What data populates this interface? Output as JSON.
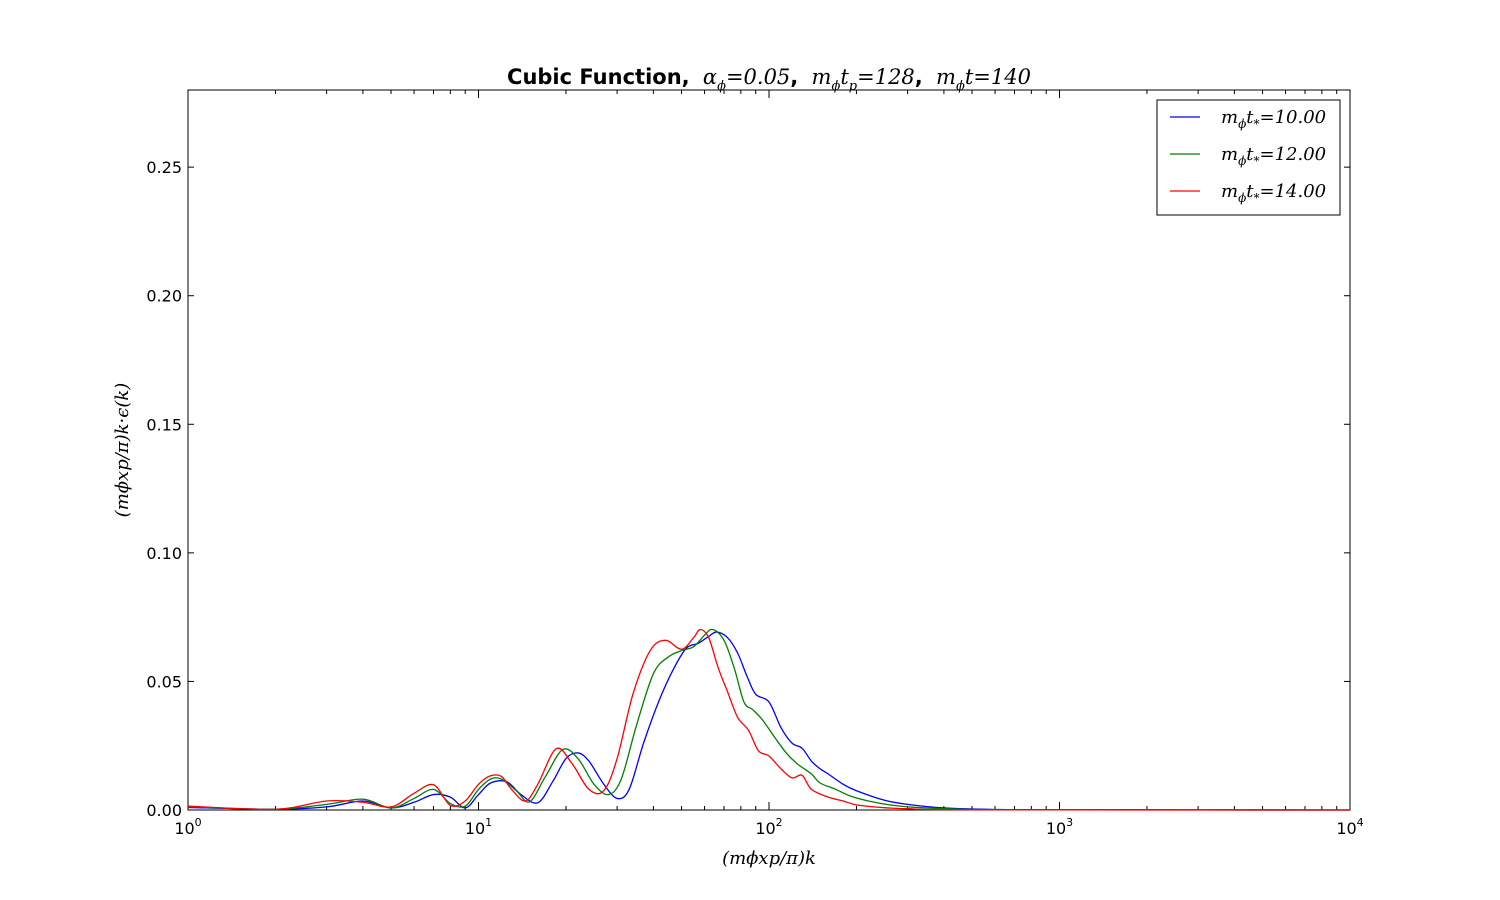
{
  "chart_data": {
    "type": "line",
    "title": {
      "bold": "Cubic Function,",
      "math1": "α",
      "sub1": "ϕ",
      "eq1": "=0.05",
      "sep1": ",",
      "math2": "m",
      "sub2": "ϕ",
      "math2b": "t",
      "sub2b": "p",
      "eq2": "=128",
      "sep2": ",",
      "math3": "m",
      "sub3": "ϕ",
      "math3b": "t",
      "eq3": "=140"
    },
    "xlabel": "(mϕxp/π)k",
    "ylabel": "(mϕxp/π)k·ϵ(k)",
    "xscale": "log",
    "xlim": [
      1,
      10000
    ],
    "ylim": [
      0,
      0.28
    ],
    "xticks": [
      {
        "value": 1,
        "base": "10",
        "exp": "0"
      },
      {
        "value": 10,
        "base": "10",
        "exp": "1"
      },
      {
        "value": 100,
        "base": "10",
        "exp": "2"
      },
      {
        "value": 1000,
        "base": "10",
        "exp": "3"
      },
      {
        "value": 10000,
        "base": "10",
        "exp": "4"
      }
    ],
    "yticks": [
      {
        "value": 0.0,
        "label": "0.00"
      },
      {
        "value": 0.05,
        "label": "0.05"
      },
      {
        "value": 0.1,
        "label": "0.10"
      },
      {
        "value": 0.15,
        "label": "0.15"
      },
      {
        "value": 0.2,
        "label": "0.20"
      },
      {
        "value": 0.25,
        "label": "0.25"
      }
    ],
    "grid": false,
    "legend_position": "top-right",
    "series": [
      {
        "name": "mϕt*=10.00",
        "label_value": "=10.00",
        "color": "#0000ff",
        "points": [
          [
            1,
            0.001
          ],
          [
            2,
            0.0003
          ],
          [
            3,
            0.0012
          ],
          [
            4,
            0.0035
          ],
          [
            5,
            0.0008
          ],
          [
            6,
            0.003
          ],
          [
            7,
            0.006
          ],
          [
            8,
            0.005
          ],
          [
            9,
            0.0008
          ],
          [
            10,
            0.006
          ],
          [
            11,
            0.0105
          ],
          [
            12.5,
            0.011
          ],
          [
            14,
            0.006
          ],
          [
            16,
            0.0028
          ],
          [
            18,
            0.011
          ],
          [
            20,
            0.02
          ],
          [
            22,
            0.0222
          ],
          [
            24,
            0.019
          ],
          [
            27,
            0.01
          ],
          [
            30,
            0.0045
          ],
          [
            33,
            0.008
          ],
          [
            37,
            0.026
          ],
          [
            42,
            0.043
          ],
          [
            47,
            0.055
          ],
          [
            52,
            0.063
          ],
          [
            57,
            0.0648
          ],
          [
            62,
            0.0675
          ],
          [
            66,
            0.0692
          ],
          [
            72,
            0.067
          ],
          [
            78,
            0.061
          ],
          [
            84,
            0.052
          ],
          [
            90,
            0.045
          ],
          [
            100,
            0.042
          ],
          [
            110,
            0.032
          ],
          [
            120,
            0.026
          ],
          [
            130,
            0.024
          ],
          [
            140,
            0.019
          ],
          [
            150,
            0.016
          ],
          [
            160,
            0.014
          ],
          [
            180,
            0.01
          ],
          [
            200,
            0.0075
          ],
          [
            250,
            0.0038
          ],
          [
            300,
            0.0022
          ],
          [
            400,
            0.0008
          ],
          [
            600,
            0.0002
          ],
          [
            1000,
            0.0001
          ],
          [
            10000,
            0
          ]
        ]
      },
      {
        "name": "mϕt*=12.00",
        "label_value": "=12.00",
        "color": "#008000",
        "points": [
          [
            1,
            0.0012
          ],
          [
            2,
            0.0003
          ],
          [
            3,
            0.0022
          ],
          [
            4,
            0.0042
          ],
          [
            5,
            0.0008
          ],
          [
            6,
            0.0045
          ],
          [
            7,
            0.008
          ],
          [
            8,
            0.0025
          ],
          [
            9,
            0.0015
          ],
          [
            10,
            0.008
          ],
          [
            11,
            0.012
          ],
          [
            12,
            0.012
          ],
          [
            13.5,
            0.0075
          ],
          [
            15,
            0.0032
          ],
          [
            17,
            0.013
          ],
          [
            19.5,
            0.0235
          ],
          [
            22,
            0.02
          ],
          [
            25,
            0.01
          ],
          [
            28,
            0.006
          ],
          [
            31,
            0.012
          ],
          [
            35,
            0.033
          ],
          [
            40,
            0.053
          ],
          [
            45,
            0.0595
          ],
          [
            50,
            0.062
          ],
          [
            55,
            0.0635
          ],
          [
            60,
            0.068
          ],
          [
            64,
            0.0702
          ],
          [
            70,
            0.066
          ],
          [
            76,
            0.055
          ],
          [
            82,
            0.042
          ],
          [
            88,
            0.039
          ],
          [
            95,
            0.035
          ],
          [
            105,
            0.028
          ],
          [
            115,
            0.022
          ],
          [
            125,
            0.018
          ],
          [
            140,
            0.014
          ],
          [
            150,
            0.0105
          ],
          [
            170,
            0.008
          ],
          [
            190,
            0.0055
          ],
          [
            220,
            0.0035
          ],
          [
            260,
            0.002
          ],
          [
            320,
            0.001
          ],
          [
            500,
            0.0002
          ],
          [
            1000,
            0.0001
          ],
          [
            10000,
            0
          ]
        ]
      },
      {
        "name": "mϕt*=14.00",
        "label_value": "=14.00",
        "color": "#ff0000",
        "points": [
          [
            1,
            0.0015
          ],
          [
            2,
            0.0003
          ],
          [
            3,
            0.0035
          ],
          [
            4,
            0.003
          ],
          [
            5,
            0.0012
          ],
          [
            6,
            0.0065
          ],
          [
            7,
            0.0098
          ],
          [
            8,
            0.0018
          ],
          [
            9,
            0.0035
          ],
          [
            10,
            0.01
          ],
          [
            11,
            0.0133
          ],
          [
            12,
            0.013
          ],
          [
            13,
            0.008
          ],
          [
            14.5,
            0.0035
          ],
          [
            16,
            0.01
          ],
          [
            18.5,
            0.0238
          ],
          [
            21,
            0.018
          ],
          [
            24,
            0.008
          ],
          [
            27,
            0.0075
          ],
          [
            30,
            0.02
          ],
          [
            34,
            0.045
          ],
          [
            39,
            0.062
          ],
          [
            44,
            0.066
          ],
          [
            50,
            0.0625
          ],
          [
            55,
            0.067
          ],
          [
            58,
            0.0702
          ],
          [
            62,
            0.067
          ],
          [
            67,
            0.055
          ],
          [
            72,
            0.046
          ],
          [
            78,
            0.036
          ],
          [
            85,
            0.031
          ],
          [
            92,
            0.023
          ],
          [
            100,
            0.021
          ],
          [
            110,
            0.016
          ],
          [
            120,
            0.0125
          ],
          [
            130,
            0.0135
          ],
          [
            140,
            0.008
          ],
          [
            160,
            0.005
          ],
          [
            180,
            0.0035
          ],
          [
            200,
            0.002
          ],
          [
            250,
            0.0009
          ],
          [
            300,
            0.0005
          ],
          [
            500,
            0.0001
          ],
          [
            10000,
            0
          ]
        ]
      }
    ]
  }
}
